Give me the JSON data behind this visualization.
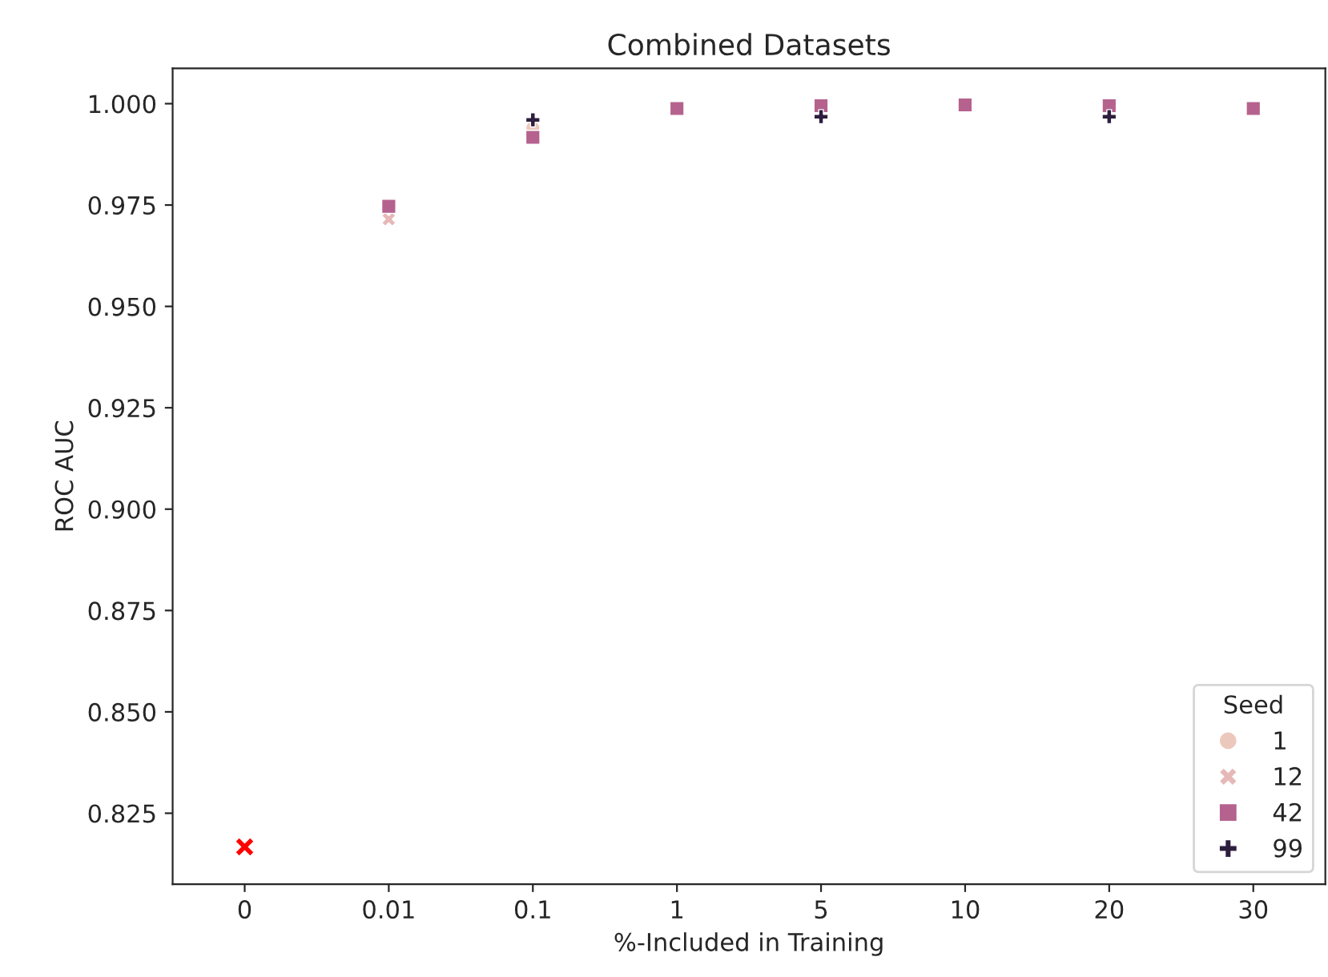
{
  "chart_data": {
    "type": "scatter",
    "title": "Combined Datasets",
    "xlabel": "%-Included in Training",
    "ylabel": "ROC AUC",
    "legend_title": "Seed",
    "legend": "bottom right",
    "grid": false,
    "categories": [
      "0",
      "0.01",
      "0.1",
      "1",
      "5",
      "10",
      "20",
      "30"
    ],
    "ylim": [
      0.8075,
      1.0087
    ],
    "yticks": [
      {
        "value": 0.825,
        "label": "0.825"
      },
      {
        "value": 0.85,
        "label": "0.850"
      },
      {
        "value": 0.875,
        "label": "0.875"
      },
      {
        "value": 0.9,
        "label": "0.900"
      },
      {
        "value": 0.925,
        "label": "0.925"
      },
      {
        "value": 0.95,
        "label": "0.950"
      },
      {
        "value": 0.975,
        "label": "0.975"
      },
      {
        "value": 1.0,
        "label": "1.000"
      }
    ],
    "series": [
      {
        "name": "1",
        "color": "#ecc8bc",
        "marker": "circle",
        "values": [
          null,
          null,
          0.994,
          null,
          null,
          null,
          null,
          null
        ]
      },
      {
        "name": "12",
        "color": "#e6b8b8",
        "marker": "cross",
        "values": [
          null,
          0.9715,
          null,
          null,
          null,
          null,
          null,
          null
        ]
      },
      {
        "name": "42",
        "color": "#b5628e",
        "marker": "square",
        "values": [
          null,
          0.9747,
          0.9917,
          0.9988,
          0.9995,
          0.9997,
          0.9995,
          0.9988
        ]
      },
      {
        "name": "99",
        "color": "#2d1e3e",
        "marker": "plus",
        "values": [
          null,
          null,
          0.996,
          null,
          0.9968,
          null,
          0.9968,
          null
        ]
      },
      {
        "color": "#ff0000",
        "marker": "x",
        "values": [
          0.8167,
          null,
          null,
          null,
          null,
          null,
          null,
          null
        ]
      }
    ]
  }
}
